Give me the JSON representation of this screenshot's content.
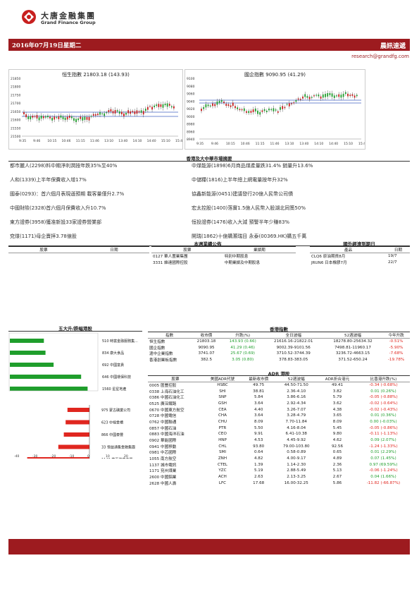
{
  "header": {
    "company_cn": "大唐金融集團",
    "company_en": "Grand Finance Group",
    "date": "2016年07月19日星期二",
    "title": "晨訊速遞",
    "email": "research@grandfg.com"
  },
  "hsi_chart": {
    "title": "恒生指數 21803.18 (143.93)",
    "y_ticks": [
      "21850",
      "21800",
      "21750",
      "21700",
      "21650",
      "21600",
      "21550",
      "21500"
    ],
    "x_ticks": [
      "9:35",
      "9:46",
      "10:15",
      "10:46",
      "11:15",
      "11:46",
      "13:10",
      "13:40",
      "14:10",
      "14:40",
      "15:10",
      "15:40"
    ]
  },
  "hscei_chart": {
    "title": "國企指數 9090.95 (41.29)",
    "y_ticks": [
      "9100",
      "9080",
      "9060",
      "9040",
      "9020",
      "9000",
      "8980",
      "8960",
      "8940"
    ],
    "x_ticks": [
      "9:35",
      "9:46",
      "10:15",
      "10:46",
      "11:15",
      "11:46",
      "13:10",
      "13:40",
      "14:10",
      "14:40",
      "15:10",
      "15:40"
    ]
  },
  "news": {
    "title": "香港及大中華市場摘要",
    "left": [
      "都市麗人(2298)料中期淨利潤按年跌35%至40%",
      "人和(1339)上半年保費收入增17%",
      "國泰(0293)：首六個月表現遜預期 載客量僅升2.7%",
      "中國財險(2328)首六個月保費收入升10.7%",
      "東方證券(3958)獲准新設33家證券營業部",
      "兗煤(1171)母企賣拝3.78億股"
    ],
    "right": [
      "中煤能源(1898)6月商品煤產量跌31.4% 銷量升13.6%",
      "中儲糧(1816)上半年總上網電量按年升32%",
      "協鑫新能源(0451)建議發行20億人民幣公司債",
      "宏太控股(1400)落實1.5億人民幣入股湖北同策50%",
      "恒投證券(1476)收入大減 預警半年少賺83%",
      "開瑞(1862)十億購灝瑞目 永泰(00369.HK)購五千萬"
    ]
  },
  "results": {
    "title": "本週業績公佈",
    "cols": [
      "股票",
      "業績期"
    ],
    "rows": [
      [
        "0127 華人置業集團",
        "特別中期股息"
      ],
      [
        "3331 維達國際控股",
        "中期業績及中期股息"
      ]
    ]
  },
  "left_table": {
    "cols": [
      "股票",
      "日期"
    ]
  },
  "econ": {
    "title": "國外經濟到期日",
    "cols": [
      "產品",
      "日期"
    ],
    "rows": [
      [
        "CLQ6 原油期貨8月",
        "19/7"
      ],
      [
        "JRUN6 日本橡膠7月",
        "22/7"
      ]
    ]
  },
  "movers": {
    "title": "五大升/跌幅港股",
    "gainers": [
      {
        "label": "510 時富金融服務集...",
        "value": 10.5
      },
      {
        "label": "834 康大食品",
        "value": 11.0
      },
      {
        "label": "692 中國富貴",
        "value": 13.5
      },
      {
        "label": "646 中國環保科技",
        "value": 22.0
      },
      {
        "label": "1560 星星地產",
        "value": 24.0
      }
    ],
    "losers": [
      {
        "label": "975 蒙古礦業公司",
        "value": -12.0
      },
      {
        "label": "623 中視金橋",
        "value": -13.0
      },
      {
        "label": "866 中國泰豐",
        "value": -14.0
      },
      {
        "label": "33 恒益通集金融集團",
        "value": -17.0
      },
      {
        "label": "1143 華夏健康產業",
        "value": -34.0
      }
    ],
    "axis_ticks": [
      "-40",
      "-30",
      "-20",
      "-10",
      "0",
      "10",
      "20",
      "30"
    ]
  },
  "hk_index": {
    "title": "香港指數",
    "cols": [
      "指數",
      "收市價",
      "升跌(%)",
      "全日波幅",
      "52週波幅",
      "今年升跌"
    ],
    "rows": [
      [
        "恒生指數",
        "21803.18",
        "143.93 (0.66)",
        "21616.16-21822.01",
        "18278.80-25634.32",
        "-0.51%"
      ],
      [
        "國企指數",
        "9090.95",
        "41.29 (0.46)",
        "9002.39-9101.56",
        "7498.81-11960.17",
        "-5.90%"
      ],
      [
        "滬中企業指數",
        "3741.07",
        "25.67 (0.69)",
        "3710.52-3744.39",
        "3236.72-4663.15",
        "-7.68%"
      ],
      [
        "香港創業板指數",
        "382.5",
        "3.05 (0.80)",
        "378.83-383.05",
        "371.52-650.24",
        "-19.78%"
      ]
    ]
  },
  "adr": {
    "title": "ADR 港股",
    "cols": [
      "股票",
      "美國ADR代號",
      "最新收市價",
      "52週波幅",
      "ADR折合港元",
      "比香港升跌(%)"
    ],
    "rows": [
      [
        "0005 匯豐控股",
        "HSBC",
        "49.75",
        "44.50-71.50",
        "49.41",
        "-0.34 (-0.68%)"
      ],
      [
        "0338 上海石油化工",
        "SHI",
        "38.81",
        "2.36-4.10",
        "3.82",
        "0.01 (0.26%)"
      ],
      [
        "0386 中國石油化工",
        "SNP",
        "5.84",
        "3.86-6.16",
        "5.79",
        "-0.05 (-0.88%)"
      ],
      [
        "0525 廣深鐵路",
        "GSH",
        "3.64",
        "2.92-4.34",
        "3.62",
        "-0.02 (-0.64%)"
      ],
      [
        "0670 中國東方航空",
        "CEA",
        "4.40",
        "3.26-7.07",
        "4.38",
        "-0.02 (-0.43%)"
      ],
      [
        "0728 中國電信",
        "CHA",
        "3.64",
        "3.28-4.79",
        "3.65",
        "0.01 (0.36%)"
      ],
      [
        "0762 中國聯通",
        "CHU",
        "8.09",
        "7.70-11.84",
        "8.09",
        "0.00 (-0.03%)"
      ],
      [
        "0857 中國石油",
        "PTR",
        "5.50",
        "4.16-8.04",
        "5.45",
        "-0.05 (-0.86%)"
      ],
      [
        "0883 中國海洋石油",
        "CEO",
        "9.91",
        "6.41-10.38",
        "9.80",
        "-0.11 (-1.13%)"
      ],
      [
        "0902 華能國際",
        "HNP",
        "4.53",
        "4.45-9.92",
        "4.62",
        "0.09 (2.07%)"
      ],
      [
        "0941 中國移動",
        "CHL",
        "93.80",
        "79.00-103.80",
        "92.56",
        "-1.24 (-1.33%)"
      ],
      [
        "0981 中芯國際",
        "SMI",
        "0.64",
        "0.58-0.89",
        "0.65",
        "0.01 (2.29%)"
      ],
      [
        "1055 南方航空",
        "ZNH",
        "4.82",
        "4.00-9.17",
        "4.89",
        "0.07 (1.45%)"
      ],
      [
        "1137 城市電訊",
        "CTEL",
        "1.39",
        "1.14-2.30",
        "2.36",
        "0.97 (69.59%)"
      ],
      [
        "1171 兗州煤業",
        "YZC",
        "5.19",
        "2.88-5.49",
        "5.13",
        "-0.06 (-1.24%)"
      ],
      [
        "2600 中國鋁業",
        "ACH",
        "2.63",
        "2.13-3.25",
        "2.67",
        "0.04 (1.66%)"
      ],
      [
        "2628 中國人壽",
        "LFC",
        "17.68",
        "16.00-32.25",
        "5.86",
        "-11.82 (-66.87%)"
      ]
    ]
  },
  "colors": {
    "brand": "#9d1b1f",
    "up": "#1f9e2c",
    "down": "#e0261f"
  }
}
